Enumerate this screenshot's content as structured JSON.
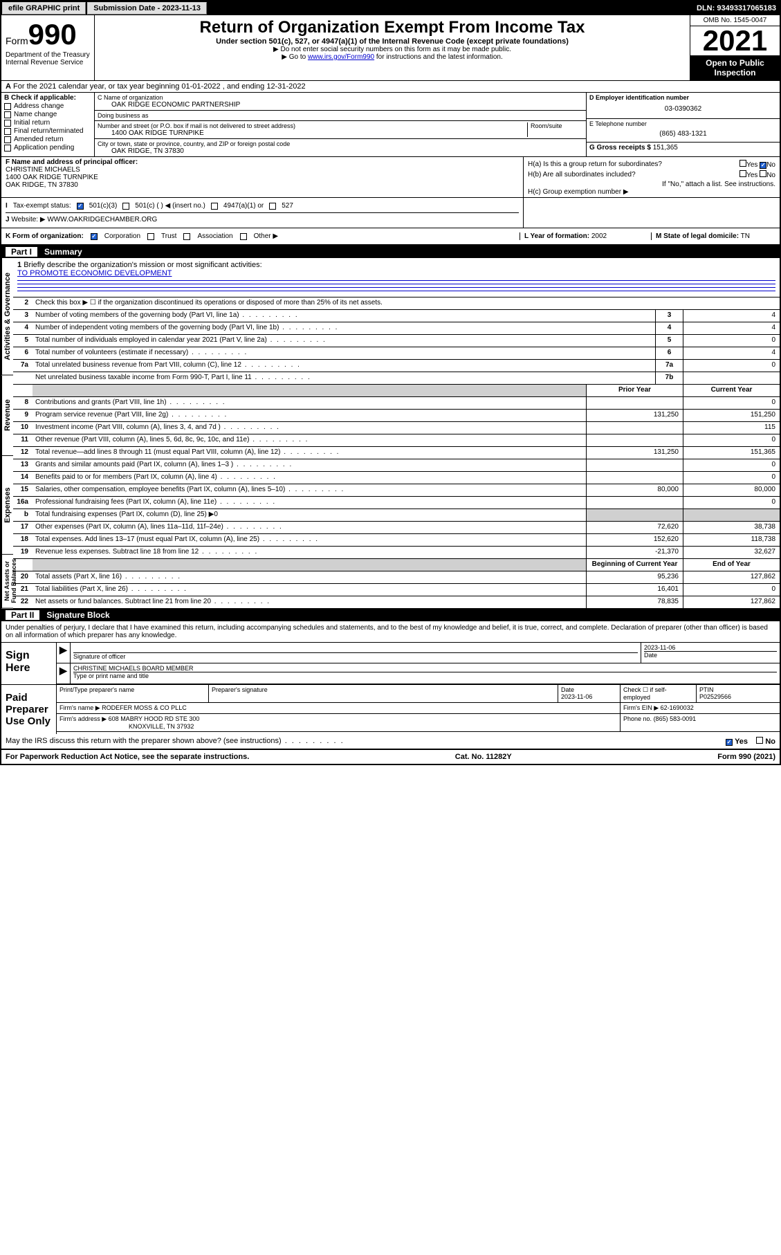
{
  "topbar": {
    "efile": "efile GRAPHIC print",
    "sub_label": "Submission Date - 2023-11-13",
    "dln": "DLN: 93493317065183"
  },
  "header": {
    "form_prefix": "Form",
    "form_num": "990",
    "dept": "Department of the Treasury",
    "irs": "Internal Revenue Service",
    "title": "Return of Organization Exempt From Income Tax",
    "sub": "Under section 501(c), 527, or 4947(a)(1) of the Internal Revenue Code (except private foundations)",
    "note1": "▶ Do not enter social security numbers on this form as it may be made public.",
    "note2_pre": "▶ Go to ",
    "note2_link": "www.irs.gov/Form990",
    "note2_post": " for instructions and the latest information.",
    "omb": "OMB No. 1545-0047",
    "year": "2021",
    "inspect": "Open to Public Inspection"
  },
  "secA": "For the 2021 calendar year, or tax year beginning 01-01-2022  , and ending 12-31-2022",
  "secB": {
    "hdr": "B Check if applicable:",
    "opts": [
      "Address change",
      "Name change",
      "Initial return",
      "Final return/terminated",
      "Amended return",
      "Application pending"
    ]
  },
  "secC": {
    "name_lbl": "C Name of organization",
    "name": "OAK RIDGE ECONOMIC PARTNERSHIP",
    "dba_lbl": "Doing business as",
    "dba": "",
    "addr_lbl": "Number and street (or P.O. box if mail is not delivered to street address)",
    "room_lbl": "Room/suite",
    "addr": "1400 OAK RIDGE TURNPIKE",
    "city_lbl": "City or town, state or province, country, and ZIP or foreign postal code",
    "city": "OAK RIDGE, TN  37830"
  },
  "secD": {
    "lbl": "D Employer identification number",
    "val": "03-0390362"
  },
  "secE": {
    "lbl": "E Telephone number",
    "val": "(865) 483-1321"
  },
  "secG": {
    "lbl": "G Gross receipts $",
    "val": "151,365"
  },
  "secF": {
    "lbl": "F Name and address of principal officer:",
    "name": "CHRISTINE MICHAELS",
    "addr1": "1400 OAK RIDGE TURNPIKE",
    "addr2": "OAK RIDGE, TN  37830"
  },
  "secH": {
    "a": "H(a)  Is this a group return for subordinates?",
    "b": "H(b)  Are all subordinates included?",
    "bnote": "If \"No,\" attach a list. See instructions.",
    "c": "H(c)  Group exemption number ▶",
    "yes": "Yes",
    "no": "No"
  },
  "secI": {
    "lbl": "Tax-exempt status:",
    "opts": [
      "501(c)(3)",
      "501(c) (  ) ◀ (insert no.)",
      "4947(a)(1) or",
      "527"
    ]
  },
  "secJ": {
    "lbl": "Website: ▶",
    "val": "WWW.OAKRIDGECHAMBER.ORG"
  },
  "secK": {
    "lbl": "K Form of organization:",
    "opts": [
      "Corporation",
      "Trust",
      "Association",
      "Other ▶"
    ]
  },
  "secL": {
    "lbl": "L Year of formation:",
    "val": "2002"
  },
  "secM": {
    "lbl": "M State of legal domicile:",
    "val": "TN"
  },
  "part1": {
    "hdr_num": "Part I",
    "hdr_title": "Summary",
    "q1": "Briefly describe the organization's mission or most significant activities:",
    "mission": "TO PROMOTE ECONOMIC DEVELOPMENT",
    "q2": "Check this box ▶ ☐  if the organization discontinued its operations or disposed of more than 25% of its net assets.",
    "groups": {
      "gov": "Activities & Governance",
      "rev": "Revenue",
      "exp": "Expenses",
      "net": "Net Assets or Fund Balances"
    },
    "col_prior": "Prior Year",
    "col_curr": "Current Year",
    "col_boy": "Beginning of Current Year",
    "col_eoy": "End of Year",
    "rows_gov": [
      {
        "n": "3",
        "d": "Number of voting members of the governing body (Part VI, line 1a)",
        "b": "3",
        "v": "4"
      },
      {
        "n": "4",
        "d": "Number of independent voting members of the governing body (Part VI, line 1b)",
        "b": "4",
        "v": "4"
      },
      {
        "n": "5",
        "d": "Total number of individuals employed in calendar year 2021 (Part V, line 2a)",
        "b": "5",
        "v": "0"
      },
      {
        "n": "6",
        "d": "Total number of volunteers (estimate if necessary)",
        "b": "6",
        "v": "4"
      },
      {
        "n": "7a",
        "d": "Total unrelated business revenue from Part VIII, column (C), line 12",
        "b": "7a",
        "v": "0"
      },
      {
        "n": "",
        "d": "Net unrelated business taxable income from Form 990-T, Part I, line 11",
        "b": "7b",
        "v": ""
      }
    ],
    "rows_rev": [
      {
        "n": "8",
        "d": "Contributions and grants (Part VIII, line 1h)",
        "p": "",
        "c": "0"
      },
      {
        "n": "9",
        "d": "Program service revenue (Part VIII, line 2g)",
        "p": "131,250",
        "c": "151,250"
      },
      {
        "n": "10",
        "d": "Investment income (Part VIII, column (A), lines 3, 4, and 7d )",
        "p": "",
        "c": "115"
      },
      {
        "n": "11",
        "d": "Other revenue (Part VIII, column (A), lines 5, 6d, 8c, 9c, 10c, and 11e)",
        "p": "",
        "c": "0"
      },
      {
        "n": "12",
        "d": "Total revenue—add lines 8 through 11 (must equal Part VIII, column (A), line 12)",
        "p": "131,250",
        "c": "151,365"
      }
    ],
    "rows_exp": [
      {
        "n": "13",
        "d": "Grants and similar amounts paid (Part IX, column (A), lines 1–3 )",
        "p": "",
        "c": "0"
      },
      {
        "n": "14",
        "d": "Benefits paid to or for members (Part IX, column (A), line 4)",
        "p": "",
        "c": "0"
      },
      {
        "n": "15",
        "d": "Salaries, other compensation, employee benefits (Part IX, column (A), lines 5–10)",
        "p": "80,000",
        "c": "80,000"
      },
      {
        "n": "16a",
        "d": "Professional fundraising fees (Part IX, column (A), line 11e)",
        "p": "",
        "c": "0"
      },
      {
        "n": "b",
        "d": "Total fundraising expenses (Part IX, column (D), line 25) ▶0",
        "shade": true
      },
      {
        "n": "17",
        "d": "Other expenses (Part IX, column (A), lines 11a–11d, 11f–24e)",
        "p": "72,620",
        "c": "38,738"
      },
      {
        "n": "18",
        "d": "Total expenses. Add lines 13–17 (must equal Part IX, column (A), line 25)",
        "p": "152,620",
        "c": "118,738"
      },
      {
        "n": "19",
        "d": "Revenue less expenses. Subtract line 18 from line 12",
        "p": "-21,370",
        "c": "32,627"
      }
    ],
    "rows_net": [
      {
        "n": "20",
        "d": "Total assets (Part X, line 16)",
        "p": "95,236",
        "c": "127,862"
      },
      {
        "n": "21",
        "d": "Total liabilities (Part X, line 26)",
        "p": "16,401",
        "c": "0"
      },
      {
        "n": "22",
        "d": "Net assets or fund balances. Subtract line 21 from line 20",
        "p": "78,835",
        "c": "127,862"
      }
    ]
  },
  "part2": {
    "hdr_num": "Part II",
    "hdr_title": "Signature Block",
    "decl": "Under penalties of perjury, I declare that I have examined this return, including accompanying schedules and statements, and to the best of my knowledge and belief, it is true, correct, and complete. Declaration of preparer (other than officer) is based on all information of which preparer has any knowledge."
  },
  "sign": {
    "here": "Sign Here",
    "sig_lbl": "Signature of officer",
    "date_lbl": "Date",
    "date": "2023-11-06",
    "name": "CHRISTINE MICHAELS  BOARD MEMBER",
    "name_lbl": "Type or print name and title"
  },
  "paid": {
    "hdr": "Paid Preparer Use Only",
    "pname_lbl": "Print/Type preparer's name",
    "psig_lbl": "Preparer's signature",
    "pdate_lbl": "Date",
    "pdate": "2023-11-06",
    "chk_lbl": "Check ☐ if self-employed",
    "ptin_lbl": "PTIN",
    "ptin": "P02529566",
    "firm_lbl": "Firm's name    ▶",
    "firm": "RODEFER MOSS & CO PLLC",
    "ein_lbl": "Firm's EIN ▶",
    "ein": "62-1690032",
    "addr_lbl": "Firm's address ▶",
    "addr1": "608 MABRY HOOD RD STE 300",
    "addr2": "KNOXVILLE, TN  37932",
    "phone_lbl": "Phone no.",
    "phone": "(865) 583-0091"
  },
  "discuss": {
    "q": "May the IRS discuss this return with the preparer shown above? (see instructions)",
    "yes": "Yes",
    "no": "No"
  },
  "footer": {
    "left": "For Paperwork Reduction Act Notice, see the separate instructions.",
    "mid": "Cat. No. 11282Y",
    "right": "Form 990 (2021)"
  }
}
